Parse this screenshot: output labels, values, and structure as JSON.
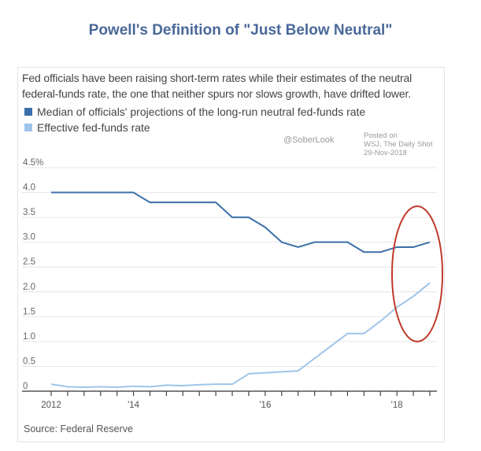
{
  "title": "Powell's Definition of \"Just Below Neutral\"",
  "subtitle": "Fed officials have been raising short-term rates while their estimates of the neutral federal-funds rate, the one that neither spurs nor slows growth, have drifted lower.",
  "watermark": {
    "line1": "Posted on",
    "line2": "WSJ, The Daily Shot",
    "line3": "29-Nov-2018",
    "handle": "@SoberLook"
  },
  "source": "Source: Federal Reserve",
  "colors": {
    "median": "#3d6fa8",
    "effective": "#9fc4ea",
    "ellipse": "#c0392b",
    "grid": "#e6e6e6",
    "title": "#4a6899"
  },
  "chart_data": {
    "type": "line",
    "title": "Powell's Definition of \"Just Below Neutral\"",
    "xlabel": "",
    "ylabel": "%",
    "ylim": [
      0,
      4.5
    ],
    "yticks": [
      {
        "v": 0,
        "label": "0"
      },
      {
        "v": 0.5,
        "label": "0.5"
      },
      {
        "v": 1,
        "label": "1.0"
      },
      {
        "v": 1.5,
        "label": "1.5"
      },
      {
        "v": 2,
        "label": "2.0"
      },
      {
        "v": 2.5,
        "label": "2.5"
      },
      {
        "v": 3,
        "label": "3.0"
      },
      {
        "v": 3.5,
        "label": "3.5"
      },
      {
        "v": 4,
        "label": "4.0"
      },
      {
        "v": 4.5,
        "label": "4.5%"
      }
    ],
    "x": [
      0,
      1,
      2,
      3,
      4,
      5,
      6,
      7,
      8,
      9,
      10,
      11,
      12,
      13,
      14,
      15,
      16,
      17,
      18,
      19,
      20,
      21,
      22,
      23
    ],
    "xticks": [
      {
        "i": 0,
        "label": "2012"
      },
      {
        "i": 5,
        "label": "'14"
      },
      {
        "i": 13,
        "label": "'16"
      },
      {
        "i": 21,
        "label": "'18"
      }
    ],
    "grid": true,
    "series": [
      {
        "name": "Median of officials' projections of the long-run neutral fed-funds rate",
        "values": [
          4.0,
          4.0,
          4.0,
          4.0,
          4.0,
          4.0,
          3.8,
          3.8,
          3.8,
          3.8,
          3.8,
          3.5,
          3.5,
          3.3,
          3.0,
          2.9,
          3.0,
          3.0,
          3.0,
          2.8,
          2.8,
          2.9,
          2.9,
          3.0
        ]
      },
      {
        "name": "Effective fed-funds rate",
        "values": [
          0.14,
          0.09,
          0.08,
          0.09,
          0.08,
          0.1,
          0.09,
          0.12,
          0.11,
          0.13,
          0.14,
          0.14,
          0.35,
          0.37,
          0.39,
          0.41,
          0.66,
          0.91,
          1.16,
          1.16,
          1.41,
          1.69,
          1.91,
          2.18
        ]
      }
    ],
    "annotation": "red ellipse highlighting 2018 points"
  }
}
